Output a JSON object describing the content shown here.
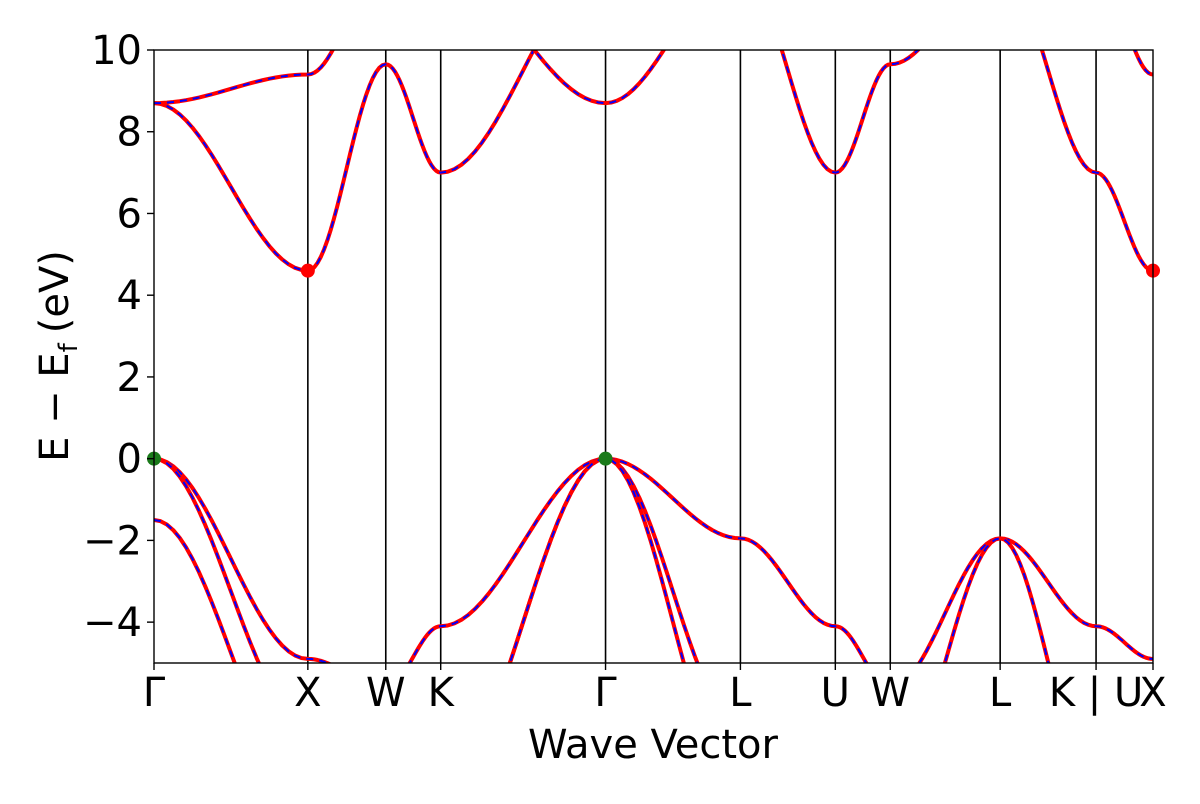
{
  "chart_data": {
    "type": "line",
    "title": "",
    "xlabel": "Wave Vector",
    "ylabel_main": "E − E",
    "ylabel_sub": "f",
    "ylabel_unit": "(eV)",
    "ylim": [
      -5,
      10
    ],
    "yticks": [
      -4,
      -2,
      0,
      2,
      4,
      6,
      8,
      10
    ],
    "ytick_labels": [
      "−4",
      "−2",
      "0",
      "2",
      "4",
      "6",
      "8",
      "10"
    ],
    "xlim": [
      0,
      1
    ],
    "kpoints": [
      {
        "label": "Γ",
        "x": 0.0
      },
      {
        "label": "X",
        "x": 0.154
      },
      {
        "label": "W",
        "x": 0.232
      },
      {
        "label": "K",
        "x": 0.287
      },
      {
        "label": "Γ",
        "x": 0.452
      },
      {
        "label": "L",
        "x": 0.587
      },
      {
        "label": "U",
        "x": 0.682
      },
      {
        "label": "W",
        "x": 0.737
      },
      {
        "label": "L",
        "x": 0.847
      },
      {
        "label": "K | U",
        "x": 0.943
      },
      {
        "label": "X",
        "x": 1.0
      }
    ],
    "grid": false,
    "line_colors": {
      "solid": "#ff0000",
      "dashed": "#0000ff"
    },
    "marker_colors": {
      "cbm": "#ff0000",
      "vbm": "#1a7a1a"
    },
    "bands": [
      {
        "x": [
          0,
          0.154,
          0.232,
          0.287,
          0.452,
          0.587,
          0.682,
          0.737,
          0.847,
          0.943,
          1.0
        ],
        "y": [
          0,
          -4.9,
          -5.6,
          -4.1,
          0,
          -1.95,
          -4.1,
          -5.6,
          -1.95,
          -4.1,
          -4.9
        ]
      },
      {
        "x": [
          0,
          0.154,
          0.232,
          0.287,
          0.452,
          0.587,
          0.682,
          0.737,
          0.847,
          0.943,
          1.0
        ],
        "y": [
          0,
          -6.5,
          -8.0,
          -8.0,
          0,
          -6.5,
          -8.0,
          -8.0,
          -1.95,
          -8.0,
          -6.5
        ]
      },
      {
        "x": [
          0,
          0.154,
          0.232,
          0.287,
          0.452,
          0.587,
          0.682,
          0.737,
          0.847,
          0.943,
          1.0
        ],
        "y": [
          -1.5,
          -8.0,
          -8.0,
          -8.0,
          0,
          -8.0,
          -8.0,
          -8.0,
          -8.0,
          -8.0,
          -8.0
        ]
      },
      {
        "x": [
          0,
          0.154,
          0.232,
          0.287,
          0.452,
          0.587,
          0.682,
          0.737,
          0.847,
          0.943,
          1.0
        ],
        "y": [
          8.7,
          4.6,
          9.65,
          7.0,
          12.0,
          12.0,
          7.0,
          9.65,
          12.0,
          7.0,
          4.6
        ]
      },
      {
        "x": [
          0,
          0.154,
          0.232,
          0.287,
          0.452,
          0.587,
          0.682,
          0.737,
          0.847,
          0.943,
          1.0
        ],
        "y": [
          8.7,
          9.4,
          12.0,
          12.0,
          8.7,
          12.0,
          12.0,
          12.0,
          12.0,
          12.0,
          9.4
        ]
      }
    ],
    "markers": [
      {
        "x": 0.154,
        "y": 4.6,
        "kind": "cbm"
      },
      {
        "x": 1.0,
        "y": 4.6,
        "kind": "cbm"
      },
      {
        "x": 0.0,
        "y": 0.0,
        "kind": "vbm"
      },
      {
        "x": 0.452,
        "y": 0.0,
        "kind": "vbm"
      }
    ]
  }
}
